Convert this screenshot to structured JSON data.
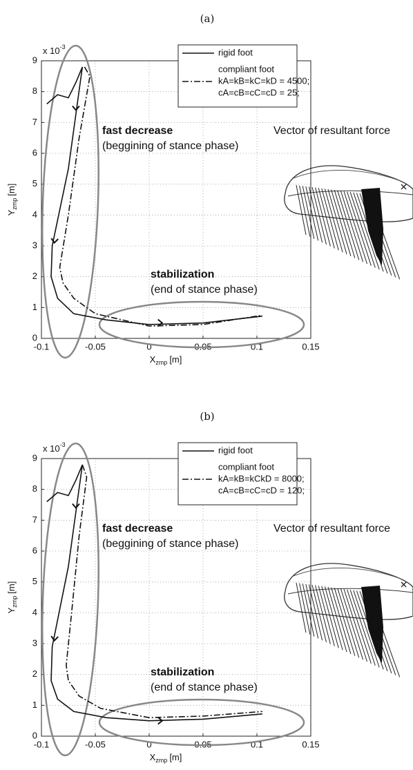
{
  "chart_data": [
    {
      "type": "line",
      "title": "(a)",
      "y_scale": "x 10",
      "y_scale_exp": "-3",
      "xlabel": "X",
      "xlabel_sub": "zmp",
      "xlabel_unit": "[m]",
      "ylabel": "Y",
      "ylabel_sub": "zmp",
      "ylabel_unit": "[m]",
      "xlim": [
        -0.1,
        0.15
      ],
      "xticks": [
        -0.1,
        -0.05,
        0,
        0.05,
        0.1,
        0.15
      ],
      "ylim": [
        0,
        9
      ],
      "yticks": [
        0,
        1,
        2,
        3,
        4,
        5,
        6,
        7,
        8,
        9
      ],
      "grid": true,
      "series": [
        {
          "name": "rigid foot",
          "color": "#111111",
          "style": "solid",
          "x": [
            -0.095,
            -0.085,
            -0.075,
            -0.068,
            -0.062,
            -0.075,
            -0.09,
            -0.091,
            -0.085,
            -0.07,
            -0.04,
            0,
            0.05,
            0.105
          ],
          "values": [
            7.6,
            7.9,
            7.8,
            8.3,
            8.8,
            5.5,
            3.0,
            2.0,
            1.3,
            0.8,
            0.6,
            0.45,
            0.5,
            0.72
          ]
        },
        {
          "name": "compliant foot",
          "color": "#111111",
          "style": "dashdot",
          "x": [
            -0.06,
            -0.055,
            -0.065,
            -0.075,
            -0.083,
            -0.08,
            -0.07,
            -0.05,
            0,
            0.05,
            0.105
          ],
          "values": [
            8.8,
            8.5,
            6.5,
            4.0,
            2.3,
            1.8,
            1.3,
            0.8,
            0.4,
            0.45,
            0.75
          ]
        }
      ],
      "legend_note": [
        "kA=kB=kC=kD = 4500;",
        "cA=cB=cC=cD = 25;"
      ],
      "annotations": [
        "fast decrease",
        "(beggining of stance phase)",
        "stabilization",
        "(end of stance phase)",
        "Vector of resultant force"
      ]
    },
    {
      "type": "line",
      "title": "(b)",
      "y_scale": "x 10",
      "y_scale_exp": "-3",
      "xlabel": "X",
      "xlabel_sub": "zmp",
      "xlabel_unit": "[m]",
      "ylabel": "Y",
      "ylabel_sub": "zmp",
      "ylabel_unit": "[m]",
      "xlim": [
        -0.1,
        0.15
      ],
      "xticks": [
        -0.1,
        -0.05,
        0,
        0.05,
        0.1,
        0.15
      ],
      "ylim": [
        0,
        9
      ],
      "yticks": [
        0,
        1,
        2,
        3,
        4,
        5,
        6,
        7,
        8,
        9
      ],
      "grid": true,
      "series": [
        {
          "name": "rigid foot",
          "color": "#111111",
          "style": "solid",
          "x": [
            -0.095,
            -0.085,
            -0.075,
            -0.068,
            -0.062,
            -0.075,
            -0.09,
            -0.091,
            -0.085,
            -0.07,
            -0.04,
            0,
            0.05,
            0.105
          ],
          "values": [
            7.6,
            7.9,
            7.8,
            8.3,
            8.8,
            5.5,
            2.9,
            1.8,
            1.2,
            0.8,
            0.6,
            0.5,
            0.55,
            0.72
          ]
        },
        {
          "name": "compliant foot",
          "color": "#111111",
          "style": "dashdot",
          "x": [
            -0.062,
            -0.058,
            -0.065,
            -0.072,
            -0.077,
            -0.075,
            -0.065,
            -0.045,
            0,
            0.05,
            0.105
          ],
          "values": [
            8.8,
            8.4,
            6.5,
            4.0,
            2.3,
            1.8,
            1.3,
            0.9,
            0.6,
            0.65,
            0.8
          ]
        }
      ],
      "legend_note": [
        "kA=kB=kCkD = 8000;",
        "cA=cB=cC=cD = 120;"
      ],
      "annotations": [
        "fast decrease",
        "(beggining of stance phase)",
        "stabilization",
        "(end of stance phase)",
        "Vector of resultant force"
      ]
    }
  ]
}
